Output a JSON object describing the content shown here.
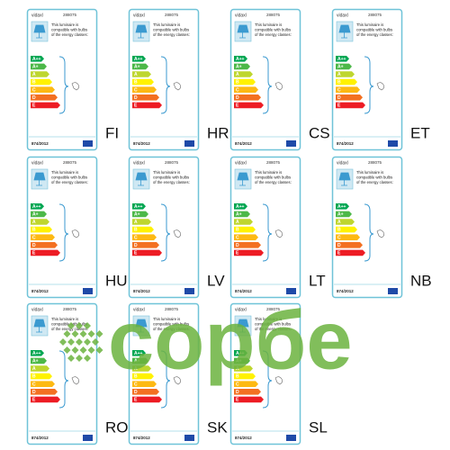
{
  "label": {
    "brand": "vidaxl",
    "code": "288075",
    "info_lines": [
      "This luminaire is",
      "compatible with bulbs",
      "of the energy classes:"
    ],
    "classes": [
      "A++",
      "A+",
      "A",
      "B",
      "C",
      "D",
      "E"
    ],
    "regulation": "874/2012"
  },
  "languages": [
    "FI",
    "HR",
    "CS",
    "ET",
    "HU",
    "LV",
    "LT",
    "NB",
    "RO",
    "SK",
    "SL"
  ],
  "watermark": "сорбе"
}
